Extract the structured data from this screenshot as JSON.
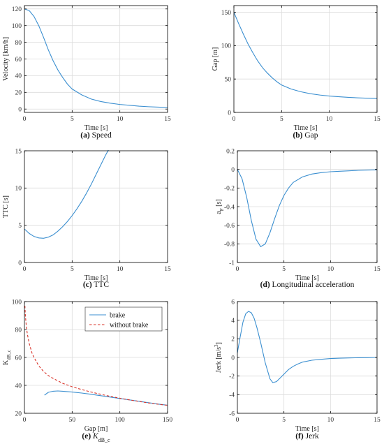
{
  "colors": {
    "series_blue": "#3b8fd0",
    "series_red": "#d9342b",
    "grid": "#dcdcdc",
    "axis": "#000000"
  },
  "chart_data": [
    {
      "id": "speed",
      "type": "line",
      "caption_label": "(a)",
      "caption_text": "Speed",
      "xlabel": "Time [s]",
      "ylabel": "Velocity [km/h]",
      "xlim": [
        0,
        15
      ],
      "ylim": [
        -4,
        124
      ],
      "xticks": [
        0,
        5,
        10,
        15
      ],
      "yticks": [
        0,
        20,
        40,
        60,
        80,
        100,
        120
      ],
      "grid": true,
      "series": [
        {
          "color": "#3b8fd0",
          "style": "solid",
          "x": [
            0,
            0.5,
            1,
            1.5,
            2,
            2.5,
            3,
            3.5,
            4,
            4.5,
            5,
            6,
            7,
            8,
            9,
            10,
            11,
            12,
            13,
            14,
            15
          ],
          "y": [
            120,
            118,
            111,
            100,
            86,
            71,
            58,
            47,
            38,
            30,
            24,
            17,
            12,
            9,
            7,
            5.5,
            4.5,
            3.5,
            2.8,
            2.3,
            1.8
          ]
        }
      ]
    },
    {
      "id": "gap",
      "type": "line",
      "caption_label": "(b)",
      "caption_text": "Gap",
      "xlabel": "Time [s]",
      "ylabel": "Gap [m]",
      "xlim": [
        0,
        15
      ],
      "ylim": [
        0,
        160
      ],
      "xticks": [
        0,
        5,
        10,
        15
      ],
      "yticks": [
        0,
        50,
        100,
        150
      ],
      "grid": true,
      "series": [
        {
          "color": "#3b8fd0",
          "style": "solid",
          "x": [
            0,
            0.5,
            1,
            1.5,
            2,
            2.5,
            3,
            3.5,
            4,
            4.5,
            5,
            6,
            7,
            8,
            9,
            10,
            11,
            12,
            13,
            14,
            15
          ],
          "y": [
            150,
            133,
            117,
            102,
            89,
            77,
            67,
            59,
            52,
            46,
            41,
            35,
            31,
            28,
            26,
            24.5,
            23.5,
            22.5,
            21.8,
            21.2,
            20.8
          ]
        }
      ]
    },
    {
      "id": "ttc",
      "type": "line",
      "caption_label": "(c)",
      "caption_text": "TTC",
      "xlabel": "Time [s]",
      "ylabel": "TTC [s]",
      "xlim": [
        0,
        15
      ],
      "ylim": [
        0,
        15
      ],
      "xticks": [
        0,
        5,
        10,
        15
      ],
      "yticks": [
        0,
        5,
        10,
        15
      ],
      "grid": true,
      "series": [
        {
          "color": "#3b8fd0",
          "style": "solid",
          "x": [
            0,
            0.5,
            1,
            1.5,
            2,
            2.5,
            3,
            3.5,
            4,
            4.5,
            5,
            5.5,
            6,
            6.5,
            7,
            7.5,
            8,
            8.5,
            8.8
          ],
          "y": [
            4.5,
            3.9,
            3.5,
            3.3,
            3.25,
            3.4,
            3.7,
            4.2,
            4.8,
            5.5,
            6.3,
            7.2,
            8.2,
            9.3,
            10.5,
            11.8,
            13.1,
            14.4,
            15.1
          ]
        }
      ]
    },
    {
      "id": "longitudinal_acceleration",
      "type": "line",
      "caption_label": "(d)",
      "caption_text": "Longitudinal acceleration",
      "xlabel": "Time [s]",
      "ylabel_main": "a",
      "ylabel_sub": "F",
      "ylabel_tail": " [s]",
      "xlim": [
        0,
        15
      ],
      "ylim": [
        -1,
        0.2
      ],
      "xticks": [
        0,
        5,
        10,
        15
      ],
      "yticks": [
        0.2,
        0,
        -0.2,
        -0.4,
        -0.6,
        -0.8,
        -1
      ],
      "grid": true,
      "series": [
        {
          "color": "#3b8fd0",
          "style": "solid",
          "x": [
            0,
            0.5,
            1,
            1.5,
            2,
            2.5,
            3,
            3.5,
            4,
            4.5,
            5,
            5.5,
            6,
            7,
            8,
            9,
            10,
            11,
            12,
            13,
            14,
            15
          ],
          "y": [
            0,
            -0.1,
            -0.3,
            -0.55,
            -0.75,
            -0.83,
            -0.8,
            -0.68,
            -0.53,
            -0.39,
            -0.28,
            -0.2,
            -0.14,
            -0.08,
            -0.05,
            -0.035,
            -0.025,
            -0.02,
            -0.015,
            -0.01,
            -0.007,
            -0.005
          ]
        }
      ]
    },
    {
      "id": "kdbc",
      "type": "line",
      "caption_label": "(e)",
      "caption_text_main": "K",
      "caption_text_sub": "dB_c",
      "xlabel": "Gap [m]",
      "ylabel_main": "K",
      "ylabel_sub": "dB_c",
      "xlim": [
        0,
        150
      ],
      "ylim": [
        20,
        100
      ],
      "xticks": [
        0,
        50,
        100,
        150
      ],
      "yticks": [
        20,
        40,
        60,
        80,
        100
      ],
      "grid": true,
      "legend": {
        "placement": "top-right",
        "entries": [
          "brake",
          "without brake"
        ]
      },
      "series": [
        {
          "name": "brake",
          "color": "#3b8fd0",
          "style": "solid",
          "x": [
            21,
            25,
            30,
            35,
            40,
            50,
            60,
            70,
            80,
            90,
            100,
            110,
            120,
            130,
            140,
            150
          ],
          "y": [
            33,
            35,
            35.8,
            36,
            35.8,
            35.2,
            34.5,
            33.6,
            32.6,
            31.6,
            30.6,
            29.6,
            28.6,
            27.6,
            26.6,
            25.8
          ]
        },
        {
          "name": "without brake",
          "color": "#d9342b",
          "style": "dashed",
          "x": [
            0.5,
            1,
            2,
            3,
            5,
            8,
            10,
            15,
            20,
            25,
            30,
            40,
            50,
            60,
            70,
            80,
            90,
            100,
            110,
            120,
            130,
            140,
            150
          ],
          "y": [
            97,
            90,
            82,
            77,
            70,
            63,
            60,
            54,
            50,
            47,
            45,
            41.5,
            39,
            37,
            35.2,
            33.6,
            32.1,
            30.8,
            29.6,
            28.5,
            27.4,
            26.5,
            25.7
          ]
        }
      ]
    },
    {
      "id": "jerk",
      "type": "line",
      "caption_label": "(f)",
      "caption_text": "Jerk",
      "xlabel": "Time [s]",
      "ylabel_main": "Jerk [m/s",
      "ylabel_sup": "3",
      "ylabel_tail": "]",
      "xlim": [
        0,
        15
      ],
      "ylim": [
        -6,
        6
      ],
      "xticks": [
        0,
        5,
        10,
        15
      ],
      "yticks": [
        6,
        4,
        2,
        0,
        -2,
        -4,
        -6
      ],
      "grid": true,
      "series": [
        {
          "color": "#3b8fd0",
          "style": "solid",
          "x": [
            0,
            0.3,
            0.6,
            0.9,
            1.2,
            1.5,
            1.8,
            2.1,
            2.5,
            3,
            3.5,
            3.8,
            4.2,
            4.6,
            5,
            5.5,
            6,
            6.5,
            7,
            8,
            9,
            10,
            11,
            12,
            13,
            14,
            15
          ],
          "y": [
            0.5,
            2.2,
            3.8,
            4.7,
            4.95,
            4.8,
            4.2,
            3.2,
            1.6,
            -0.6,
            -2.3,
            -2.7,
            -2.6,
            -2.2,
            -1.8,
            -1.3,
            -0.95,
            -0.7,
            -0.5,
            -0.3,
            -0.2,
            -0.12,
            -0.08,
            -0.05,
            -0.03,
            -0.02,
            0
          ]
        }
      ]
    }
  ]
}
